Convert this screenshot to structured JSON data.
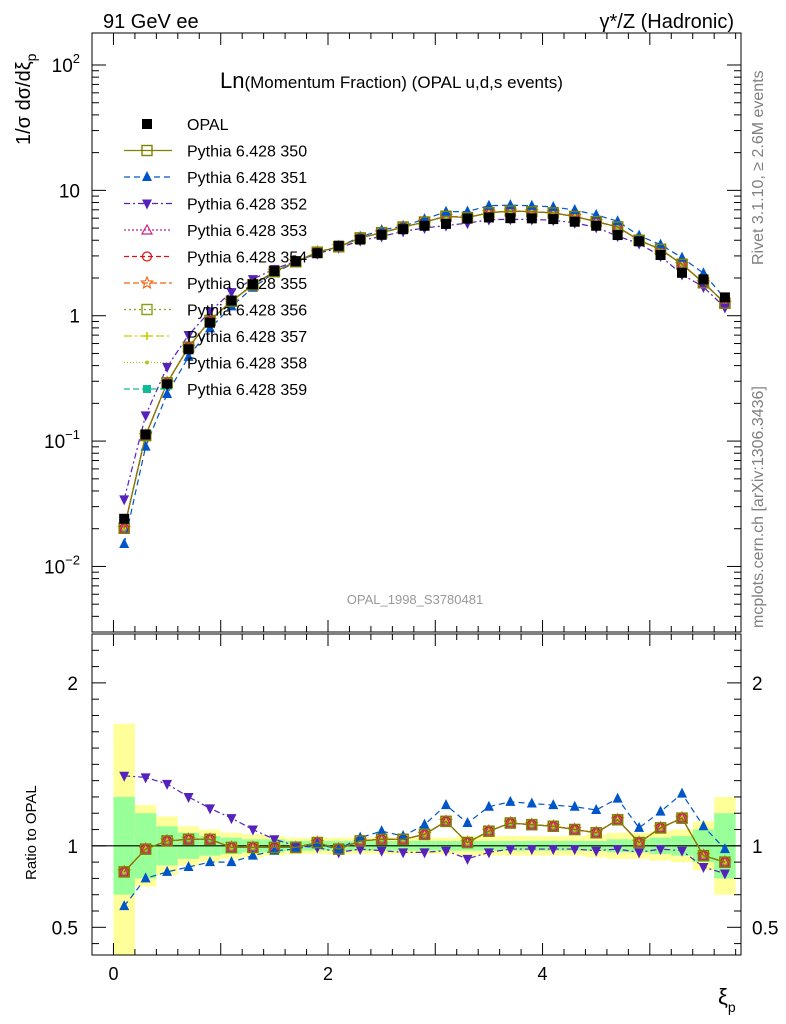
{
  "header": {
    "left": "91 GeV ee",
    "right": "γ*/Z (Hadronic)"
  },
  "side_text": {
    "top": "Rivet 3.1.10, ≥ 2.6M events",
    "bottom": "mcplots.cern.ch [arXiv:1306.3436]"
  },
  "chart_data": {
    "type": "line",
    "title_prefix": "Ln",
    "title": "(Momentum Fraction) (OPAL u,d,s events)",
    "watermark": "OPAL_1998_S3780481",
    "xlabel": "ξ",
    "xlabel_sub": "p",
    "ylabel": "1/σ dσ/dξ",
    "ylabel_sub": "p",
    "ratio_ylabel": "Ratio to OPAL",
    "xlim": [
      -0.2,
      5.85
    ],
    "ylim": [
      0.003,
      180
    ],
    "y_scale": "log",
    "ratio_ylim": [
      0.33,
      2.3
    ],
    "x_ticks": [
      "0",
      "2",
      "4"
    ],
    "y_ticks": [
      "10^-2",
      "10^-1",
      "1",
      "10",
      "10^2"
    ],
    "ratio_ticks": [
      "0.5",
      "1",
      "2"
    ],
    "legend_position": "top-left",
    "x": [
      0.1,
      0.3,
      0.5,
      0.7,
      0.9,
      1.1,
      1.3,
      1.5,
      1.7,
      1.9,
      2.1,
      2.3,
      2.5,
      2.7,
      2.9,
      3.1,
      3.3,
      3.5,
      3.7,
      3.9,
      4.1,
      4.3,
      4.5,
      4.7,
      4.9,
      5.1,
      5.3,
      5.5,
      5.7
    ],
    "data": {
      "name": "OPAL",
      "values": [
        0.024,
        0.113,
        0.283,
        0.54,
        0.88,
        1.32,
        1.78,
        2.27,
        2.72,
        3.15,
        3.62,
        4.05,
        4.42,
        4.9,
        5.22,
        5.4,
        5.95,
        6.08,
        6.0,
        5.98,
        5.9,
        5.62,
        5.22,
        4.4,
        3.92,
        3.05,
        2.2,
        1.95,
        1.4
      ],
      "band_inner": [
        0.3,
        0.2,
        0.12,
        0.08,
        0.06,
        0.05,
        0.04,
        0.04,
        0.03,
        0.03,
        0.03,
        0.03,
        0.03,
        0.03,
        0.03,
        0.03,
        0.03,
        0.03,
        0.03,
        0.03,
        0.03,
        0.03,
        0.03,
        0.04,
        0.04,
        0.05,
        0.06,
        0.1,
        0.2
      ],
      "band_outer": [
        0.75,
        0.25,
        0.18,
        0.12,
        0.1,
        0.08,
        0.07,
        0.06,
        0.05,
        0.05,
        0.05,
        0.05,
        0.05,
        0.05,
        0.05,
        0.05,
        0.06,
        0.06,
        0.06,
        0.06,
        0.06,
        0.06,
        0.07,
        0.08,
        0.08,
        0.09,
        0.1,
        0.15,
        0.3
      ]
    },
    "series": [
      {
        "name": "Pythia 6.428 350",
        "color": "#808000",
        "marker": "square-open",
        "dash": "solid",
        "ratio": [
          0.84,
          0.98,
          1.03,
          1.04,
          1.04,
          0.99,
          0.99,
          0.99,
          0.99,
          1.02,
          0.98,
          1.03,
          1.04,
          1.04,
          1.07,
          1.15,
          1.02,
          1.09,
          1.14,
          1.13,
          1.12,
          1.1,
          1.08,
          1.16,
          1.02,
          1.11,
          1.17,
          0.94,
          0.9
        ]
      },
      {
        "name": "Pythia 6.428 351",
        "color": "#0055c8",
        "marker": "triangle-up",
        "dash": "6,4",
        "ratio": [
          0.63,
          0.8,
          0.84,
          0.87,
          0.9,
          0.9,
          0.94,
          0.97,
          0.98,
          1.01,
          0.98,
          1.05,
          1.09,
          1.06,
          1.13,
          1.25,
          1.14,
          1.24,
          1.27,
          1.26,
          1.25,
          1.24,
          1.22,
          1.29,
          1.11,
          1.21,
          1.32,
          1.12,
          0.98
        ]
      },
      {
        "name": "Pythia 6.428 352",
        "color": "#5522bb",
        "marker": "triangle-down",
        "dash": "6,3,2,3",
        "ratio": [
          1.43,
          1.42,
          1.38,
          1.3,
          1.23,
          1.17,
          1.1,
          1.04,
          1.0,
          0.99,
          0.96,
          0.98,
          0.97,
          0.96,
          0.96,
          0.97,
          0.92,
          0.96,
          0.98,
          0.98,
          0.98,
          0.98,
          0.97,
          0.98,
          0.96,
          0.98,
          0.97,
          0.87,
          0.83
        ]
      },
      {
        "name": "Pythia 6.428 353",
        "color": "#cc2288",
        "marker": "triangle-open",
        "dash": "2,2",
        "ratio": [
          0.84,
          0.98,
          1.03,
          1.04,
          1.04,
          0.99,
          0.99,
          0.99,
          0.99,
          1.02,
          0.98,
          1.03,
          1.04,
          1.04,
          1.07,
          1.15,
          1.02,
          1.09,
          1.14,
          1.13,
          1.12,
          1.1,
          1.08,
          1.16,
          1.02,
          1.11,
          1.17,
          0.94,
          0.9
        ]
      },
      {
        "name": "Pythia 6.428 354",
        "color": "#dd1111",
        "marker": "circle-open",
        "dash": "5,3",
        "ratio": [
          0.84,
          0.98,
          1.03,
          1.04,
          1.04,
          0.99,
          0.99,
          0.99,
          0.99,
          1.02,
          0.98,
          1.03,
          1.04,
          1.04,
          1.07,
          1.15,
          1.02,
          1.09,
          1.14,
          1.13,
          1.12,
          1.1,
          1.08,
          1.16,
          1.02,
          1.11,
          1.17,
          0.94,
          0.9
        ]
      },
      {
        "name": "Pythia 6.428 355",
        "color": "#ee6611",
        "marker": "star-open",
        "dash": "6,3",
        "ratio": [
          0.84,
          0.98,
          1.03,
          1.04,
          1.04,
          0.99,
          0.99,
          0.99,
          0.99,
          1.02,
          0.98,
          1.03,
          1.04,
          1.04,
          1.07,
          1.15,
          1.02,
          1.09,
          1.14,
          1.13,
          1.12,
          1.1,
          1.08,
          1.16,
          1.02,
          1.11,
          1.17,
          0.94,
          0.9
        ]
      },
      {
        "name": "Pythia 6.428 356",
        "color": "#88a010",
        "marker": "square-open",
        "dash": "2,3",
        "ratio": [
          0.84,
          0.98,
          1.03,
          1.04,
          1.04,
          0.99,
          0.99,
          0.99,
          0.99,
          1.02,
          0.98,
          1.03,
          1.04,
          1.04,
          1.07,
          1.15,
          1.02,
          1.09,
          1.14,
          1.13,
          1.12,
          1.1,
          1.08,
          1.16,
          1.02,
          1.11,
          1.17,
          0.94,
          0.9
        ]
      },
      {
        "name": "Pythia 6.428 357",
        "color": "#cccc00",
        "marker": "cross",
        "dash": "8,3,2,3",
        "ratio": [
          0.84,
          0.98,
          1.03,
          1.04,
          1.04,
          0.99,
          0.99,
          0.99,
          0.99,
          1.02,
          0.98,
          1.03,
          1.04,
          1.04,
          1.07,
          1.15,
          1.02,
          1.09,
          1.14,
          1.13,
          1.12,
          1.1,
          1.08,
          1.16,
          1.02,
          1.11,
          1.17,
          0.94,
          0.9
        ]
      },
      {
        "name": "Pythia 6.428 358",
        "color": "#aacc22",
        "marker": "dot",
        "dash": "1,2",
        "ratio": [
          0.84,
          0.98,
          1.03,
          1.04,
          1.04,
          0.99,
          0.99,
          0.99,
          0.99,
          1.02,
          0.98,
          1.03,
          1.04,
          1.04,
          1.07,
          1.15,
          1.02,
          1.09,
          1.14,
          1.13,
          1.12,
          1.1,
          1.08,
          1.16,
          1.02,
          1.11,
          1.17,
          0.94,
          0.9
        ]
      },
      {
        "name": "Pythia 6.428 359",
        "color": "#11bb99",
        "marker": "square-filled",
        "dash": "6,3",
        "ratio": [
          0.84,
          0.98,
          1.03,
          1.04,
          1.04,
          0.99,
          0.99,
          0.99,
          0.99,
          1.02,
          0.98,
          1.03,
          1.04,
          1.04,
          1.07,
          1.15,
          1.02,
          1.09,
          1.14,
          1.13,
          1.12,
          1.1,
          1.08,
          1.16,
          1.02,
          1.11,
          1.17,
          0.94,
          0.9
        ]
      }
    ]
  }
}
